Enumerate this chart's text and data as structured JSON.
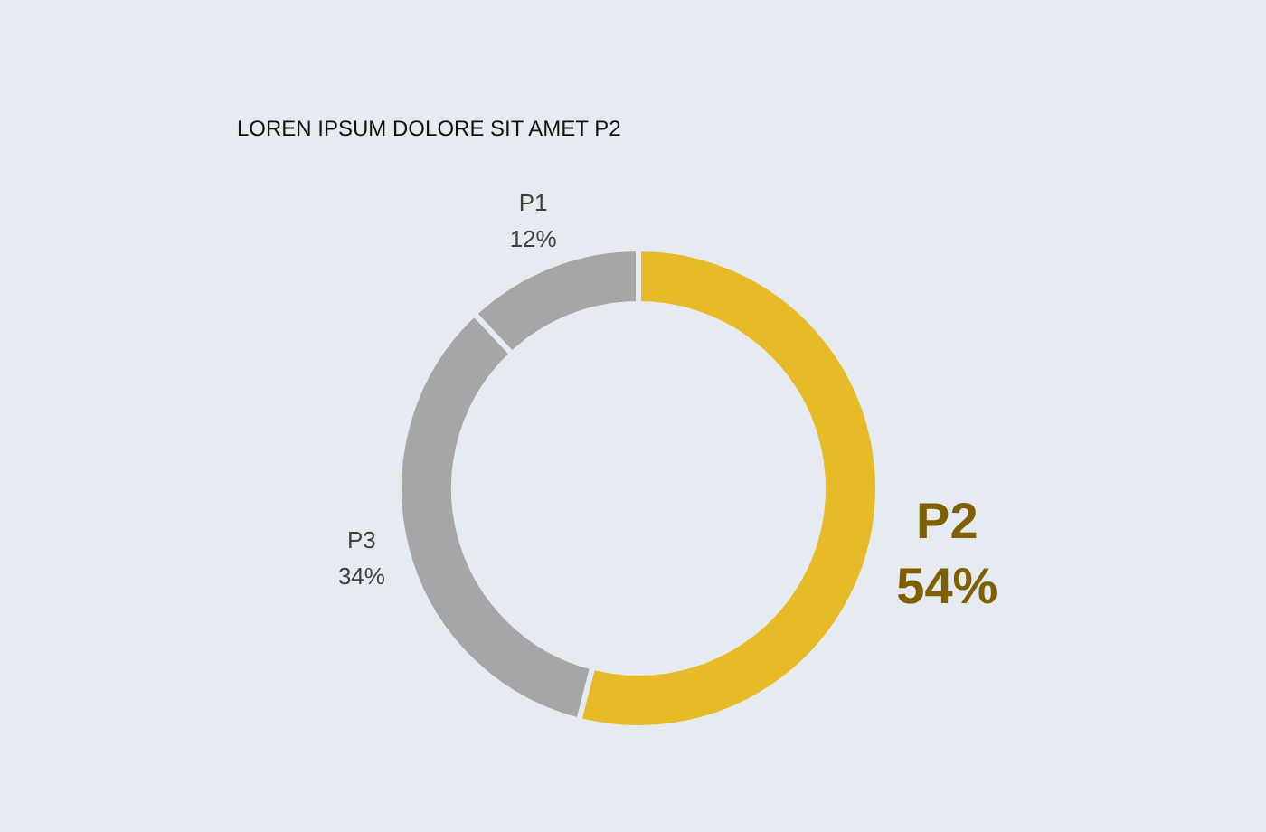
{
  "chart_data": {
    "type": "donut",
    "title": "LOREN IPSUM DOLORE SIT AMET P2",
    "categories": [
      "P2",
      "P3",
      "P1"
    ],
    "values": [
      54,
      34,
      12
    ],
    "colors": [
      "#e6bb27",
      "#a6a6a6",
      "#a6a6a6"
    ],
    "value_labels": [
      "54%",
      "34%",
      "12%"
    ],
    "legend": false
  }
}
